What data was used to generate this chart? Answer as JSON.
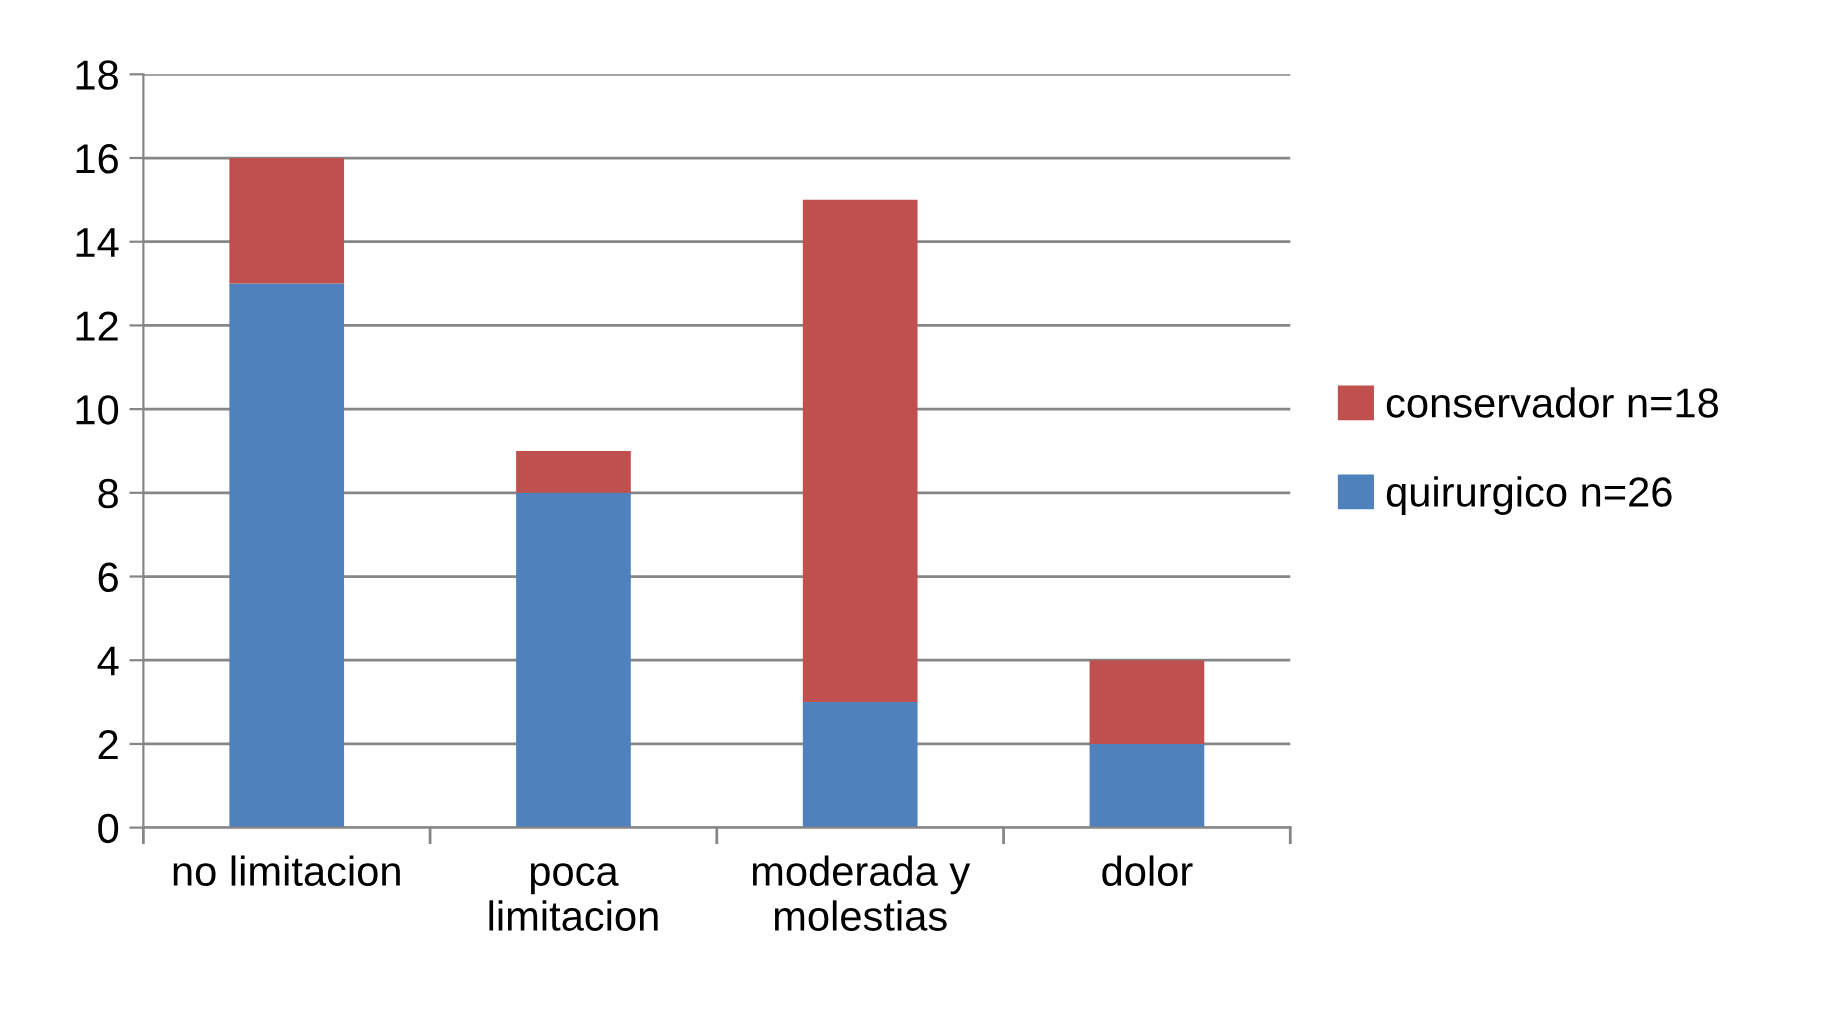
{
  "chart_data": {
    "type": "bar",
    "stacked": true,
    "categories": [
      "no limitacion",
      "poca\nlimitacion",
      "moderada y\nmolestias",
      "dolor"
    ],
    "series": [
      {
        "name": "quirurgico n=26",
        "color": "#4f81bd",
        "values": [
          13,
          8,
          3,
          2
        ]
      },
      {
        "name": "conservador n=18",
        "color": "#c0504d",
        "values": [
          3,
          1,
          12,
          2
        ]
      }
    ],
    "ylim": [
      0,
      18
    ],
    "yticks": [
      0,
      2,
      4,
      6,
      8,
      10,
      12,
      14,
      16,
      18
    ],
    "grid": "y",
    "legend": "right"
  }
}
